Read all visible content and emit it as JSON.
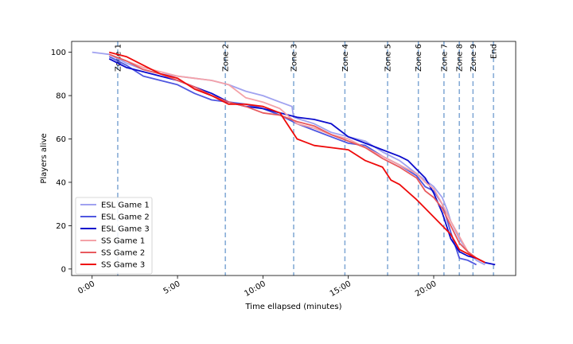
{
  "chart_data": {
    "type": "line",
    "title": "",
    "xlabel": "Time ellapsed (minutes)",
    "ylabel": "Players alive",
    "xlim": [
      -1.2,
      24.8
    ],
    "ylim": [
      -3,
      105
    ],
    "x_ticks": [
      0,
      5,
      10,
      15,
      20
    ],
    "x_tick_labels": [
      "0:00",
      "5:00",
      "10:00",
      "15:00",
      "20:00"
    ],
    "y_ticks": [
      0,
      20,
      40,
      60,
      80,
      100
    ],
    "y_tick_labels": [
      "0",
      "20",
      "40",
      "60",
      "80",
      "100"
    ],
    "grid": false,
    "legend_position": "lower-left",
    "zones": [
      {
        "label": "Zone 1",
        "x": 1.5
      },
      {
        "label": "Zone 2",
        "x": 7.8
      },
      {
        "label": "Zone 3",
        "x": 11.8
      },
      {
        "label": "Zone 4",
        "x": 14.8
      },
      {
        "label": "Zone 5",
        "x": 17.3
      },
      {
        "label": "Zone 6",
        "x": 19.1
      },
      {
        "label": "Zone 7",
        "x": 20.6
      },
      {
        "label": "Zone 8",
        "x": 21.5
      },
      {
        "label": "Zone 9",
        "x": 22.3
      },
      {
        "label": "End",
        "x": 23.5
      }
    ],
    "zone_line_color": "#7fa7d4",
    "series": [
      {
        "name": "ESL Game 1",
        "color": "#a0a2f0",
        "x": [
          0,
          1,
          2,
          3,
          4,
          5,
          6,
          7,
          8,
          9,
          10,
          11,
          11.7,
          11.8,
          13,
          14,
          15,
          16,
          17,
          18,
          19,
          19.5,
          20,
          20.5,
          20.8,
          21,
          21.5,
          22,
          22.5,
          23
        ],
        "y": [
          100,
          99,
          95,
          92,
          90,
          89,
          88,
          87,
          85,
          82,
          80,
          77,
          75,
          70,
          67,
          63,
          61,
          59,
          54,
          50,
          44,
          41,
          38,
          33,
          27,
          22,
          14,
          8,
          4,
          2
        ]
      },
      {
        "name": "ESL Game 2",
        "color": "#4f58e0",
        "x": [
          1,
          2,
          3,
          4,
          5,
          6,
          7,
          8,
          9,
          10,
          11,
          12,
          13,
          14,
          15,
          16,
          17,
          18,
          19,
          19.5,
          20,
          20.5,
          21,
          21.5,
          22,
          22.5
        ],
        "y": [
          98,
          94,
          89,
          87,
          85,
          81,
          78,
          77,
          76,
          74,
          71,
          67,
          64,
          61,
          58,
          57,
          52,
          48,
          43,
          38,
          36,
          30,
          17,
          5,
          4,
          2
        ]
      },
      {
        "name": "ESL Game 3",
        "color": "#0b0bcc",
        "x": [
          1,
          2,
          3,
          4,
          5,
          6,
          7,
          8,
          9,
          10,
          11,
          12,
          13,
          14,
          15,
          16,
          17,
          18,
          18.5,
          19,
          19.5,
          20,
          20.5,
          21,
          21.5,
          22,
          22.5,
          23,
          23.6
        ],
        "y": [
          97,
          93,
          91,
          89,
          87,
          84,
          81,
          77,
          75,
          74,
          72,
          70,
          69,
          67,
          61,
          58,
          55,
          52,
          50,
          46,
          42,
          35,
          26,
          14,
          8,
          6,
          5,
          3,
          2
        ]
      },
      {
        "name": "SS Game 1",
        "color": "#f4a2a8",
        "x": [
          1,
          2,
          3,
          4,
          5,
          6,
          7,
          8,
          9,
          10,
          11,
          12,
          13,
          14,
          15,
          16,
          17,
          18,
          19,
          19.5,
          20,
          20.5,
          21,
          21.5,
          22,
          22.5,
          23
        ],
        "y": [
          99,
          96,
          93,
          91,
          89,
          88,
          87,
          85,
          79,
          77,
          74,
          67,
          65,
          62,
          60,
          56,
          52,
          48,
          44,
          40,
          37,
          30,
          22,
          15,
          8,
          5,
          3
        ]
      },
      {
        "name": "SS Game 2",
        "color": "#e85a5e",
        "x": [
          1,
          2,
          3,
          4,
          5,
          6,
          7,
          8,
          9,
          10,
          11,
          12,
          13,
          14,
          15,
          16,
          17,
          18,
          19,
          19.5,
          20,
          20.5,
          21,
          21.5,
          22,
          22.5,
          23
        ],
        "y": [
          99,
          96,
          92,
          90,
          87,
          84,
          80,
          77,
          75,
          72,
          71,
          68,
          66,
          62,
          59,
          56,
          51,
          47,
          42,
          36,
          33,
          28,
          20,
          12,
          8,
          5,
          3
        ]
      },
      {
        "name": "SS Game 3",
        "color": "#ee0a0a",
        "x": [
          1,
          2,
          3,
          4,
          5,
          6,
          7,
          8,
          9,
          10,
          11,
          12,
          13,
          14,
          15,
          16,
          17,
          17.5,
          18,
          19,
          19.5,
          20,
          20.5,
          21,
          21.5,
          22,
          22.5,
          23
        ],
        "y": [
          100,
          98,
          94,
          90,
          88,
          83,
          80,
          76,
          76,
          75,
          72,
          60,
          57,
          56,
          55,
          50,
          47,
          41,
          39,
          32,
          28,
          24,
          20,
          16,
          9,
          7,
          5,
          3
        ]
      }
    ]
  }
}
